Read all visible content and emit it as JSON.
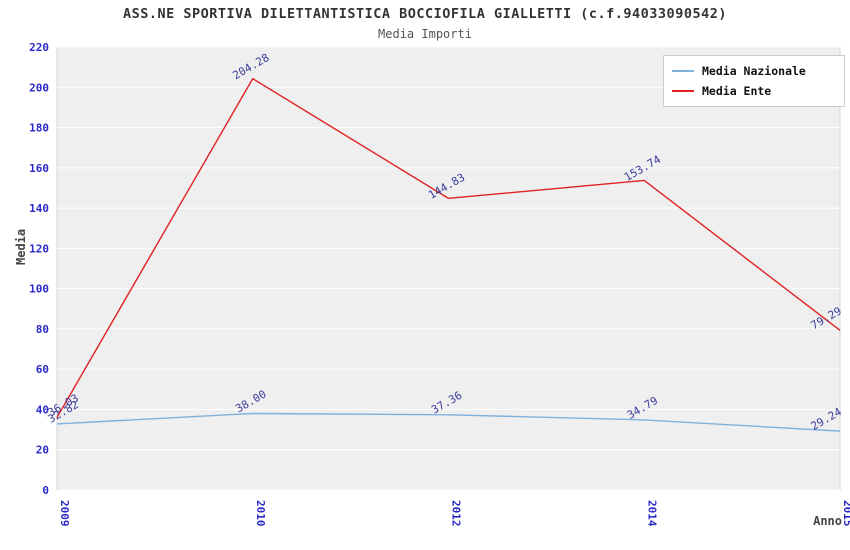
{
  "title": "ASS.NE SPORTIVA DILETTANTISTICA BOCCIOFILA GIALLETTI (c.f.94033090542)",
  "subtitle": "Media Importi",
  "axis": {
    "xlabel": "Anno",
    "ylabel": "Media"
  },
  "legend": [
    {
      "label": "Media Nazionale",
      "color": "#7eb2dd"
    },
    {
      "label": "Media Ente",
      "color": "#e02222"
    }
  ],
  "colors": {
    "plot_bg": "#efefef",
    "grid": "#ffffff",
    "plot_border": "#d6d6d6",
    "tick_label": "#2a2ac8",
    "point_label": "#3c3c9e"
  },
  "chart_data": {
    "type": "line",
    "title": "ASS.NE SPORTIVA DILETTANTISTICA BOCCIOFILA GIALLETTI (c.f.94033090542)",
    "subtitle": "Media Importi",
    "xlabel": "Anno",
    "ylabel": "Media",
    "categories": [
      "2009",
      "2010",
      "2012",
      "2014",
      "2015"
    ],
    "series": [
      {
        "name": "Media Nazionale",
        "color": "#7eb2dd",
        "values": [
          32.82,
          38.0,
          37.36,
          34.79,
          29.24
        ]
      },
      {
        "name": "Media Ente",
        "color": "#e02222",
        "values": [
          36.03,
          204.28,
          144.83,
          153.74,
          79.29
        ]
      }
    ],
    "ylim": [
      0,
      220
    ],
    "ytick_step": 20,
    "grid": true,
    "legend_position": "top-right",
    "point_labels": true
  }
}
